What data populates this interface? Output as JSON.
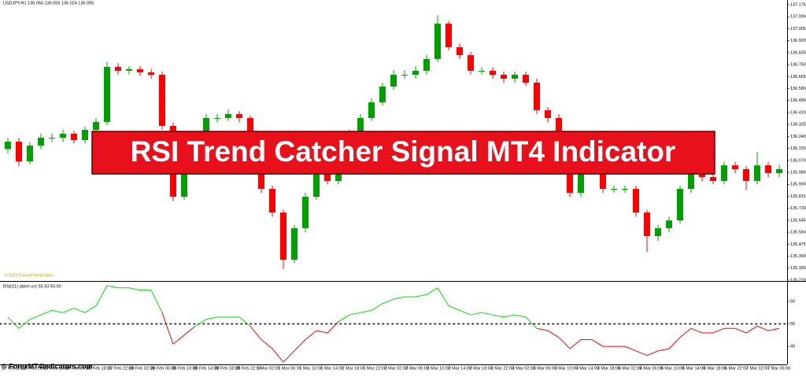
{
  "header": {
    "symbol_info": "USDJPY,H1  136.050 136.059 136.024 136.055"
  },
  "watermark": "© 2023 ForexMT4Indicators",
  "banner": "RSI Trend Catcher Signal MT4 Indicator",
  "footer": "© ForexMT4Indicators.com",
  "chart_data": [
    {
      "type": "candlestick",
      "up_color": "#00a000",
      "down_color": "#ff0000",
      "open": [
        136.15,
        136.203,
        136.063,
        136.175,
        136.231,
        136.231,
        136.259,
        136.214,
        136.287,
        136.343,
        136.734,
        136.706,
        136.717,
        136.695,
        136.678,
        136.315,
        135.812,
        136.008,
        136.203,
        136.371,
        136.371,
        136.399,
        136.371,
        136.147,
        135.868,
        135.7,
        135.365,
        135.589,
        135.812,
        135.98,
        135.924,
        136.091,
        136.259,
        136.371,
        136.482,
        136.594,
        136.678,
        136.678,
        136.706,
        136.79,
        137.041,
        136.873,
        136.817,
        136.706,
        136.706,
        136.678,
        136.65,
        136.678,
        136.622,
        136.426,
        136.371,
        136.147,
        135.84,
        136.008,
        136.008,
        135.868,
        135.868,
        135.868,
        135.7,
        135.533,
        135.589,
        135.644,
        135.868,
        136.035,
        135.952,
        135.924,
        136.035,
        136.008,
        135.924,
        136.035,
        135.98
      ],
      "high": [
        136.23,
        136.23,
        136.2,
        136.26,
        136.26,
        136.29,
        136.28,
        136.31,
        136.37,
        136.77,
        136.76,
        136.74,
        136.74,
        136.72,
        136.7,
        136.34,
        136.04,
        136.23,
        136.4,
        136.4,
        136.43,
        136.42,
        136.39,
        136.17,
        135.89,
        135.72,
        135.61,
        135.84,
        136.01,
        136.0,
        136.12,
        136.29,
        136.4,
        136.51,
        136.62,
        136.71,
        136.71,
        136.74,
        136.82,
        137.1,
        137.06,
        136.9,
        136.84,
        136.73,
        136.73,
        136.7,
        136.7,
        136.7,
        136.65,
        136.45,
        136.4,
        136.17,
        136.03,
        136.03,
        136.03,
        135.89,
        135.89,
        135.89,
        135.72,
        135.61,
        135.67,
        135.89,
        136.06,
        136.06,
        135.98,
        136.06,
        136.06,
        136.03,
        136.13,
        136.06,
        136.04
      ],
      "low": [
        136.12,
        136.03,
        136.04,
        136.15,
        136.2,
        136.2,
        136.19,
        136.19,
        136.26,
        136.32,
        136.68,
        136.68,
        136.67,
        136.65,
        136.29,
        135.78,
        135.79,
        135.98,
        136.18,
        136.34,
        136.35,
        136.34,
        136.12,
        135.84,
        135.67,
        135.3,
        135.34,
        135.56,
        135.79,
        135.9,
        135.9,
        136.07,
        136.23,
        136.35,
        136.46,
        136.57,
        136.65,
        136.65,
        136.68,
        136.77,
        136.85,
        136.79,
        136.68,
        136.68,
        136.65,
        136.62,
        136.62,
        136.6,
        136.4,
        136.34,
        136.12,
        135.81,
        135.81,
        135.98,
        135.84,
        135.84,
        135.84,
        135.67,
        135.42,
        135.5,
        135.56,
        135.62,
        135.84,
        135.92,
        135.9,
        135.9,
        135.98,
        135.86,
        135.9,
        135.95,
        135.95
      ],
      "close": [
        136.203,
        136.063,
        136.175,
        136.231,
        136.231,
        136.259,
        136.214,
        136.287,
        136.343,
        136.734,
        136.706,
        136.717,
        136.695,
        136.678,
        136.315,
        135.812,
        136.008,
        136.203,
        136.371,
        136.371,
        136.399,
        136.371,
        136.147,
        135.868,
        135.7,
        135.365,
        135.589,
        135.812,
        135.98,
        135.924,
        136.091,
        136.259,
        136.371,
        136.482,
        136.594,
        136.678,
        136.678,
        136.706,
        136.79,
        137.041,
        136.873,
        136.817,
        136.706,
        136.706,
        136.678,
        136.65,
        136.678,
        136.622,
        136.426,
        136.371,
        136.147,
        135.84,
        136.008,
        136.008,
        135.868,
        135.868,
        135.868,
        135.7,
        135.533,
        135.589,
        135.644,
        135.868,
        136.035,
        135.952,
        135.924,
        136.035,
        136.008,
        135.924,
        136.035,
        135.98,
        136.008
      ],
      "ylim": [
        135.22,
        137.175
      ],
      "yticks": [
        137.175,
        {
          "value": 137.09,
          "label": "137.090"
        },
        137.005,
        {
          "value": 136.92,
          "label": "136.920"
        },
        136.835,
        {
          "value": 136.75,
          "label": "136.750"
        },
        136.665,
        {
          "value": 136.58,
          "label": "136.580"
        },
        136.495,
        {
          "value": 136.41,
          "label": "136.410"
        },
        136.325,
        {
          "value": 136.24,
          "label": "136.240"
        },
        136.155,
        {
          "value": 136.07,
          "label": "136.070"
        },
        135.985,
        {
          "value": 135.9,
          "label": "135.900"
        },
        135.815,
        {
          "value": 135.73,
          "label": "135.730"
        },
        135.645,
        {
          "value": 135.56,
          "label": "135.560"
        },
        135.475,
        {
          "value": 135.39,
          "label": "135.390"
        },
        135.305,
        {
          "value": 135.22,
          "label": "135.220"
        }
      ],
      "x_labels": [
        "27 Feb 2023",
        "27 Feb 06:00",
        "27 Feb 10:00",
        "27 Feb 14:00",
        "27 Feb 18:00",
        "27 Feb 22:00",
        "28 Feb 02:00",
        "28 Feb 06:00",
        "28 Feb 10:00",
        "28 Feb 14:00",
        "28 Feb 18:00",
        "28 Feb 22:00",
        "1 Mar 02:00",
        "1 Mar 06:00",
        "1 Mar 10:00",
        "1 Mar 14:00",
        "1 Mar 18:00",
        "1 Mar 22:00",
        "2 Mar 02:00",
        "2 Mar 06:00",
        "2 Mar 10:00",
        "2 Mar 14:00",
        "2 Mar 18:00",
        "2 Mar 22:00",
        "3 Mar 02:00",
        "3 Mar 06:00",
        "3 Mar 10:00",
        "3 Mar 14:00",
        "3 Mar 18:00",
        "6 Mar 02:00",
        "6 Mar 06:00",
        "6 Mar 10:00",
        "6 Mar 14:00",
        "6 Mar 18:00",
        "6 Mar 22:00",
        "7 Mar 02:00",
        "7 Mar 06:00"
      ]
    },
    {
      "type": "rsi-line",
      "title": "RSI(21) (Alert on) 55.93 50.00",
      "up_color": "#00e000",
      "down_color": "#ff0000",
      "level": 50,
      "values": [
        53,
        48,
        52,
        54,
        56,
        55,
        57,
        55,
        58,
        67,
        66,
        66,
        65,
        65,
        55,
        41,
        45,
        49,
        52,
        53,
        53,
        53,
        49,
        43,
        39,
        33,
        38,
        43,
        47,
        46,
        51,
        54,
        55,
        56,
        59,
        61,
        62,
        62,
        63,
        66,
        58,
        56,
        54,
        55,
        54,
        53,
        54,
        53,
        48,
        47,
        44,
        39,
        43,
        43,
        40,
        40,
        40,
        38,
        36,
        38,
        39,
        44,
        48,
        46,
        46,
        48,
        48,
        46,
        49,
        47,
        48
      ],
      "ylim": [
        32,
        68
      ],
      "yticks": [
        60,
        50,
        40
      ]
    }
  ]
}
